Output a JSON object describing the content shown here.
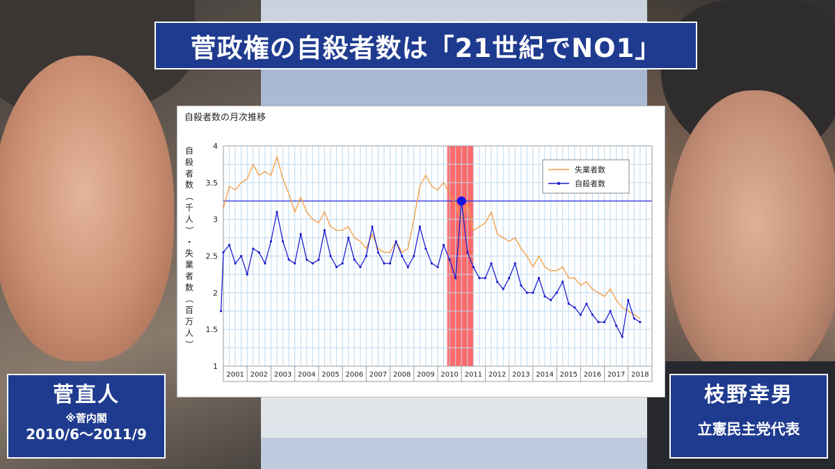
{
  "title": "菅政権の自殺者数は「21世紀でNO1」",
  "captions": {
    "left": {
      "name": "菅直人",
      "note": "※菅内閣",
      "period": "2010/6〜2011/9"
    },
    "right": {
      "name": "枝野幸男",
      "role": "立憲民主党代表"
    }
  },
  "chart_data": {
    "type": "line",
    "title": "自殺者数の月次推移",
    "ylabel": "自殺者数（千人）・失業者数（百万人）",
    "ylim": [
      1,
      4
    ],
    "yticks": [
      "1",
      "1.5",
      "2",
      "2.5",
      "3",
      "3.5",
      "4"
    ],
    "categories": [
      "2001",
      "2002",
      "2003",
      "2004",
      "2005",
      "2006",
      "2007",
      "2008",
      "2009",
      "2010",
      "2011",
      "2012",
      "2013",
      "2014",
      "2015",
      "2016",
      "2017",
      "2018"
    ],
    "highlight": {
      "from_year": 2010.4,
      "to_year": 2011.5,
      "color": "#ff5a5a"
    },
    "reference": {
      "value": 3.25,
      "point_year": 2011.0,
      "color": "#2a2ad8",
      "marker": "#1414e6"
    },
    "series": [
      {
        "name": "失業者数",
        "color": "#f39a3c",
        "points": [
          [
            2001.0,
            3.15
          ],
          [
            2001.25,
            3.45
          ],
          [
            2001.5,
            3.4
          ],
          [
            2001.75,
            3.5
          ],
          [
            2002.0,
            3.55
          ],
          [
            2002.25,
            3.75
          ],
          [
            2002.5,
            3.6
          ],
          [
            2002.75,
            3.65
          ],
          [
            2003.0,
            3.6
          ],
          [
            2003.25,
            3.85
          ],
          [
            2003.5,
            3.55
          ],
          [
            2003.75,
            3.35
          ],
          [
            2004.0,
            3.1
          ],
          [
            2004.25,
            3.3
          ],
          [
            2004.5,
            3.1
          ],
          [
            2004.75,
            3.0
          ],
          [
            2005.0,
            2.95
          ],
          [
            2005.25,
            3.1
          ],
          [
            2005.5,
            2.9
          ],
          [
            2005.75,
            2.85
          ],
          [
            2006.0,
            2.85
          ],
          [
            2006.25,
            2.9
          ],
          [
            2006.5,
            2.75
          ],
          [
            2006.75,
            2.7
          ],
          [
            2007.0,
            2.6
          ],
          [
            2007.25,
            2.8
          ],
          [
            2007.5,
            2.6
          ],
          [
            2007.75,
            2.55
          ],
          [
            2008.0,
            2.55
          ],
          [
            2008.25,
            2.7
          ],
          [
            2008.5,
            2.55
          ],
          [
            2008.75,
            2.6
          ],
          [
            2009.0,
            3.0
          ],
          [
            2009.25,
            3.45
          ],
          [
            2009.5,
            3.6
          ],
          [
            2009.75,
            3.45
          ],
          [
            2010.0,
            3.4
          ],
          [
            2010.25,
            3.5
          ],
          [
            2010.5,
            3.35
          ],
          [
            2010.75,
            3.2
          ],
          [
            2011.0,
            3.0
          ],
          [
            2011.25,
            3.2
          ],
          [
            2011.5,
            2.85
          ],
          [
            2011.75,
            2.9
          ],
          [
            2012.0,
            2.95
          ],
          [
            2012.25,
            3.1
          ],
          [
            2012.5,
            2.8
          ],
          [
            2012.75,
            2.75
          ],
          [
            2013.0,
            2.7
          ],
          [
            2013.25,
            2.75
          ],
          [
            2013.5,
            2.6
          ],
          [
            2013.75,
            2.5
          ],
          [
            2014.0,
            2.35
          ],
          [
            2014.25,
            2.5
          ],
          [
            2014.5,
            2.35
          ],
          [
            2014.75,
            2.3
          ],
          [
            2015.0,
            2.3
          ],
          [
            2015.25,
            2.35
          ],
          [
            2015.5,
            2.2
          ],
          [
            2015.75,
            2.2
          ],
          [
            2016.0,
            2.1
          ],
          [
            2016.25,
            2.15
          ],
          [
            2016.5,
            2.05
          ],
          [
            2016.75,
            2.0
          ],
          [
            2017.0,
            1.95
          ],
          [
            2017.25,
            2.05
          ],
          [
            2017.5,
            1.9
          ],
          [
            2017.75,
            1.8
          ],
          [
            2018.0,
            1.75
          ],
          [
            2018.25,
            1.7
          ],
          [
            2018.5,
            1.65
          ]
        ]
      },
      {
        "name": "自殺者数",
        "color": "#1c1ccf",
        "points": [
          [
            2000.9,
            1.75
          ],
          [
            2001.0,
            2.55
          ],
          [
            2001.25,
            2.65
          ],
          [
            2001.5,
            2.4
          ],
          [
            2001.75,
            2.5
          ],
          [
            2002.0,
            2.25
          ],
          [
            2002.25,
            2.6
          ],
          [
            2002.5,
            2.55
          ],
          [
            2002.75,
            2.4
          ],
          [
            2003.0,
            2.7
          ],
          [
            2003.25,
            3.1
          ],
          [
            2003.5,
            2.7
          ],
          [
            2003.75,
            2.45
          ],
          [
            2004.0,
            2.4
          ],
          [
            2004.25,
            2.8
          ],
          [
            2004.5,
            2.45
          ],
          [
            2004.75,
            2.4
          ],
          [
            2005.0,
            2.45
          ],
          [
            2005.25,
            2.85
          ],
          [
            2005.5,
            2.5
          ],
          [
            2005.75,
            2.35
          ],
          [
            2006.0,
            2.4
          ],
          [
            2006.25,
            2.75
          ],
          [
            2006.5,
            2.45
          ],
          [
            2006.75,
            2.35
          ],
          [
            2007.0,
            2.5
          ],
          [
            2007.25,
            2.9
          ],
          [
            2007.5,
            2.55
          ],
          [
            2007.75,
            2.4
          ],
          [
            2008.0,
            2.4
          ],
          [
            2008.25,
            2.7
          ],
          [
            2008.5,
            2.5
          ],
          [
            2008.75,
            2.35
          ],
          [
            2009.0,
            2.5
          ],
          [
            2009.25,
            2.9
          ],
          [
            2009.5,
            2.6
          ],
          [
            2009.75,
            2.4
          ],
          [
            2010.0,
            2.35
          ],
          [
            2010.25,
            2.65
          ],
          [
            2010.5,
            2.45
          ],
          [
            2010.75,
            2.2
          ],
          [
            2011.0,
            3.25
          ],
          [
            2011.25,
            2.55
          ],
          [
            2011.5,
            2.35
          ],
          [
            2011.75,
            2.2
          ],
          [
            2012.0,
            2.2
          ],
          [
            2012.25,
            2.4
          ],
          [
            2012.5,
            2.15
          ],
          [
            2012.75,
            2.05
          ],
          [
            2013.0,
            2.2
          ],
          [
            2013.25,
            2.4
          ],
          [
            2013.5,
            2.1
          ],
          [
            2013.75,
            2.0
          ],
          [
            2014.0,
            2.0
          ],
          [
            2014.25,
            2.2
          ],
          [
            2014.5,
            1.95
          ],
          [
            2014.75,
            1.9
          ],
          [
            2015.0,
            2.0
          ],
          [
            2015.25,
            2.15
          ],
          [
            2015.5,
            1.85
          ],
          [
            2015.75,
            1.8
          ],
          [
            2016.0,
            1.7
          ],
          [
            2016.25,
            1.85
          ],
          [
            2016.5,
            1.7
          ],
          [
            2016.75,
            1.6
          ],
          [
            2017.0,
            1.6
          ],
          [
            2017.25,
            1.75
          ],
          [
            2017.5,
            1.55
          ],
          [
            2017.75,
            1.4
          ],
          [
            2018.0,
            1.9
          ],
          [
            2018.25,
            1.65
          ],
          [
            2018.5,
            1.6
          ]
        ]
      }
    ]
  }
}
